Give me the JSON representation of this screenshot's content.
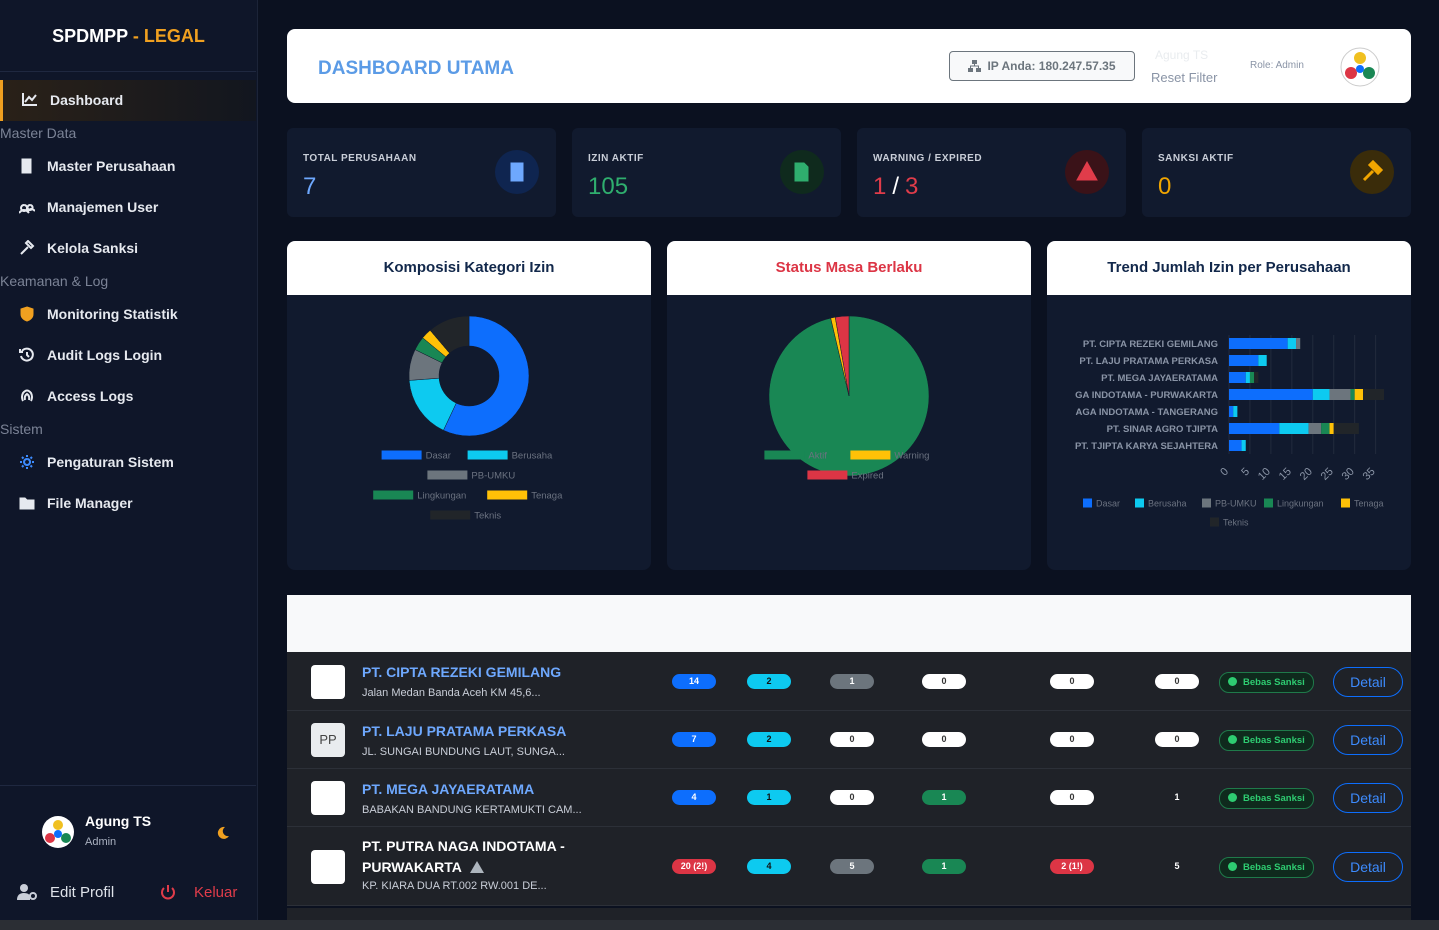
{
  "sidebar": {
    "brand": "SPDMPP",
    "brand_suffix": "- LEGAL",
    "nav": [
      {
        "label": "Dashboard"
      },
      {
        "section": "Master Data"
      },
      {
        "label": "Master Perusahaan"
      },
      {
        "label": "Manajemen User"
      },
      {
        "label": "Kelola Sanksi"
      },
      {
        "section": "Keamanan & Log"
      },
      {
        "label": "Monitoring Statistik"
      },
      {
        "label": "Audit Logs Login"
      },
      {
        "label": "Access Logs"
      },
      {
        "section": "Sistem"
      },
      {
        "label": "Pengaturan Sistem"
      },
      {
        "label": "File Manager"
      }
    ],
    "user": {
      "name": "Agung TS",
      "role": "Admin"
    },
    "edit_profile": "Edit Profil",
    "logout": "Keluar"
  },
  "header": {
    "title": "DASHBOARD UTAMA",
    "ip": "IP Anda: 180.247.57.35",
    "user_hint": "Agung TS",
    "reset": "Reset Filter",
    "role": "Role: Admin"
  },
  "stats": [
    {
      "label": "TOTAL PERUSAHAAN",
      "value": 7
    },
    {
      "label": "IZIN AKTIF",
      "value": 105
    },
    {
      "label": "WARNING / EXPIRED",
      "warning": 1,
      "separator": "/",
      "expired": 3
    },
    {
      "label": "SANKSI AKTIF",
      "value": 0
    }
  ],
  "chart_data": [
    {
      "type": "donut",
      "title": "Komposisi Kategori Izin",
      "categories": [
        "Dasar",
        "Berusaha",
        "PB-UMKU",
        "Lingkungan",
        "Tenaga",
        "Teknis"
      ],
      "values": [
        61,
        18,
        9,
        4,
        3,
        12
      ],
      "colors": [
        "#0d6efd",
        "#0dcaf0",
        "#6c757d",
        "#198754",
        "#ffc107",
        "#212529"
      ]
    },
    {
      "type": "pie",
      "title": "Status Masa Berlaku",
      "categories": [
        "Aktif",
        "Warning",
        "Expired"
      ],
      "values": [
        105,
        1,
        3
      ],
      "colors": [
        "#198754",
        "#ffc107",
        "#dc3545"
      ]
    },
    {
      "type": "hbar",
      "title": "Trend Jumlah Izin per Perusahaan",
      "stacked": true,
      "categories": [
        "PT. CIPTA REZEKI GEMILANG",
        "PT. LAJU PRATAMA PERKASA",
        "PT. MEGA JAYAERATAMA",
        "GA INDOTAMA - PURWAKARTA",
        "AGA INDOTAMA - TANGERANG",
        "PT. SINAR AGRO TJIPTA",
        "PT. TJIPTA KARYA SEJAHTERA"
      ],
      "series": [
        {
          "name": "Dasar",
          "color": "#0d6efd",
          "values": [
            14,
            7,
            4,
            20,
            1,
            12,
            3
          ]
        },
        {
          "name": "Berusaha",
          "color": "#0dcaf0",
          "values": [
            2,
            2,
            1,
            4,
            1,
            7,
            1
          ]
        },
        {
          "name": "PB-UMKU",
          "color": "#6c757d",
          "values": [
            1,
            0,
            0,
            5,
            0,
            3,
            0
          ]
        },
        {
          "name": "Lingkungan",
          "color": "#198754",
          "values": [
            0,
            0,
            1,
            1,
            0,
            2,
            0
          ]
        },
        {
          "name": "Tenaga",
          "color": "#ffc107",
          "values": [
            0,
            0,
            0,
            2,
            0,
            1,
            0
          ]
        },
        {
          "name": "Teknis",
          "color": "#212529",
          "values": [
            0,
            0,
            1,
            5,
            0,
            6,
            0
          ]
        }
      ],
      "xlim": [
        0,
        37
      ],
      "xticks": [
        0,
        5,
        10,
        15,
        20,
        25,
        30,
        35
      ],
      "grid": true
    }
  ],
  "table": {
    "column_colors": [
      "#0d6efd",
      "#0dcaf0",
      "#6c757d",
      "#198754",
      "#dc3545",
      null
    ],
    "rows": [
      {
        "name": "PT. CIPTA REZEKI GEMILANG",
        "address": "Jalan Medan Banda Aceh KM 45,6...",
        "counts": [
          14,
          2,
          1,
          0,
          0,
          0
        ],
        "status": "Bebas Sanksi",
        "action": "Detail"
      },
      {
        "logo": "PP",
        "name": "PT. LAJU PRATAMA PERKASA",
        "address": "JL. SUNGAI BUNDUNG LAUT, SUNGA...",
        "counts": [
          7,
          2,
          0,
          0,
          0,
          0
        ],
        "status": "Bebas Sanksi",
        "action": "Detail"
      },
      {
        "name": "PT. MEGA JAYAERATAMA",
        "address": "BABAKAN BANDUNG KERTAMUKTI CAM...",
        "counts": [
          4,
          1,
          0,
          1,
          0,
          1
        ],
        "status": "Bebas Sanksi",
        "action": "Detail"
      },
      {
        "name": "PT. PUTRA NAGA INDOTAMA - PURWAKARTA",
        "address": "KP. KIARA DUA RT.002 RW.001 DE...",
        "counts": [
          "20 (2!)",
          4,
          5,
          1,
          "2 (1!)",
          5
        ],
        "status": "Bebas Sanksi",
        "action": "Detail"
      }
    ]
  }
}
